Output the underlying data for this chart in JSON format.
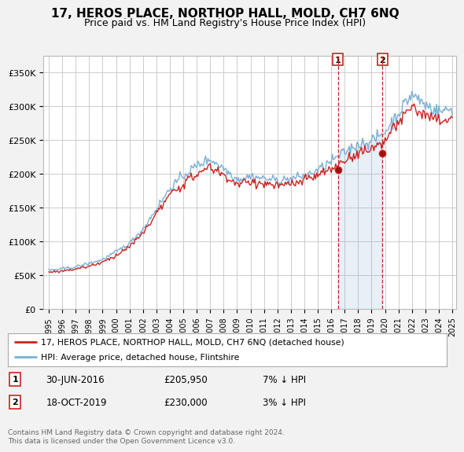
{
  "title": "17, HEROS PLACE, NORTHOP HALL, MOLD, CH7 6NQ",
  "subtitle": "Price paid vs. HM Land Registry's House Price Index (HPI)",
  "title_fontsize": 11,
  "subtitle_fontsize": 9,
  "background_color": "#f2f2f2",
  "plot_bg_color": "#ffffff",
  "ylabel_ticks": [
    "£0",
    "£50K",
    "£100K",
    "£150K",
    "£200K",
    "£250K",
    "£300K",
    "£350K"
  ],
  "ytick_values": [
    0,
    50000,
    100000,
    150000,
    200000,
    250000,
    300000,
    350000
  ],
  "ylim": [
    0,
    375000
  ],
  "hpi_color": "#7ab0d4",
  "price_color": "#cc2222",
  "sale1_date": "30-JUN-2016",
  "sale1_price": 205950,
  "sale1_hpi_diff": "7% ↓ HPI",
  "sale2_date": "18-OCT-2019",
  "sale2_price": 230000,
  "sale2_hpi_diff": "3% ↓ HPI",
  "legend_line1": "17, HEROS PLACE, NORTHOP HALL, MOLD, CH7 6NQ (detached house)",
  "legend_line2": "HPI: Average price, detached house, Flintshire",
  "footnote": "Contains HM Land Registry data © Crown copyright and database right 2024.\nThis data is licensed under the Open Government Licence v3.0.",
  "sale1_x": 2016.5,
  "sale2_x": 2019.8
}
